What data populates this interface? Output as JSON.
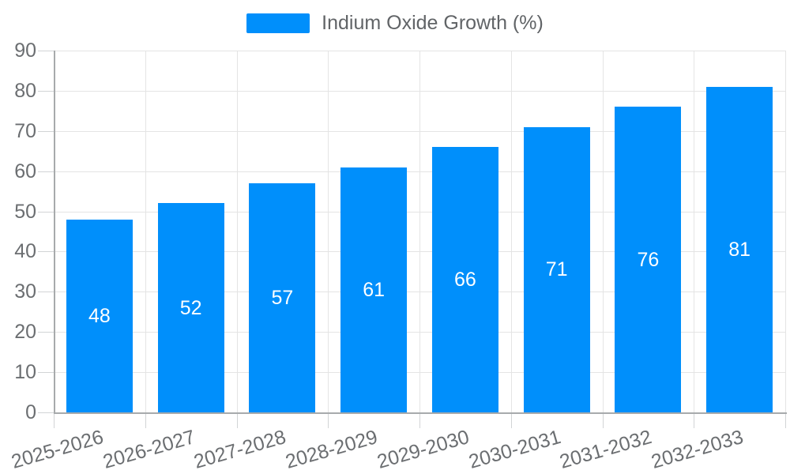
{
  "legend": {
    "label": "Indium Oxide Growth (%)",
    "swatch_color": "#008FFB"
  },
  "chart_data": {
    "type": "bar",
    "title": "",
    "categories": [
      "2025-2026",
      "2026-2027",
      "2027-2028",
      "2028-2029",
      "2029-2030",
      "2030-2031",
      "2031-2032",
      "2032-2033"
    ],
    "series": [
      {
        "name": "Indium Oxide Growth (%)",
        "values": [
          48,
          52,
          57,
          61,
          66,
          71,
          76,
          81
        ]
      }
    ],
    "xlabel": "",
    "ylabel": "",
    "ylim": [
      0,
      90
    ],
    "ytick_step": 10,
    "yticks": [
      0,
      10,
      20,
      30,
      40,
      50,
      60,
      70,
      80,
      90
    ],
    "grid": true,
    "legend_position": "top",
    "bar_color": "#008FFB",
    "value_label_color": "#ffffff",
    "value_label_position": "inside-center"
  },
  "colors": {
    "background": "#ffffff",
    "grid": "#e4e4e4",
    "axis": "#a7aaac",
    "tick": "#d2d4d6",
    "axis_text": "#6b6e71",
    "legend_text": "#616467"
  }
}
